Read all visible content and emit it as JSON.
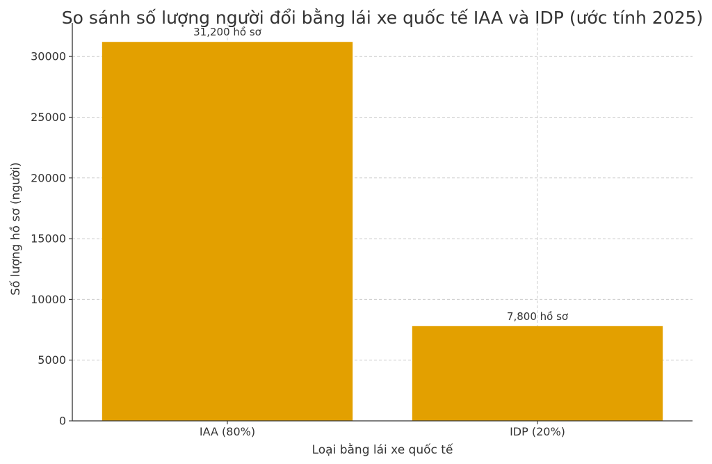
{
  "chart_data": {
    "type": "bar",
    "title": "So sánh số lượng người đổi bằng lái xe quốc tế IAA và IDP (ước tính 2025)",
    "xlabel": "Loại bằng lái xe quốc tế",
    "ylabel": "Số lượng hồ sơ (người)",
    "categories": [
      "IAA (80%)",
      "IDP (20%)"
    ],
    "values": [
      31200,
      7800
    ],
    "data_labels": [
      "31,200 hồ sơ",
      "7,800 hồ sơ"
    ],
    "yticks": [
      0,
      5000,
      10000,
      15000,
      20000,
      25000,
      30000
    ],
    "ytick_labels": [
      "0",
      "5000",
      "10000",
      "15000",
      "20000",
      "25000",
      "30000"
    ],
    "ylim": [
      0,
      32760
    ],
    "grid": true,
    "colors": {
      "bar": "#E3A000",
      "axis": "#333333",
      "grid": "#cccccc",
      "text": "#333333"
    }
  }
}
